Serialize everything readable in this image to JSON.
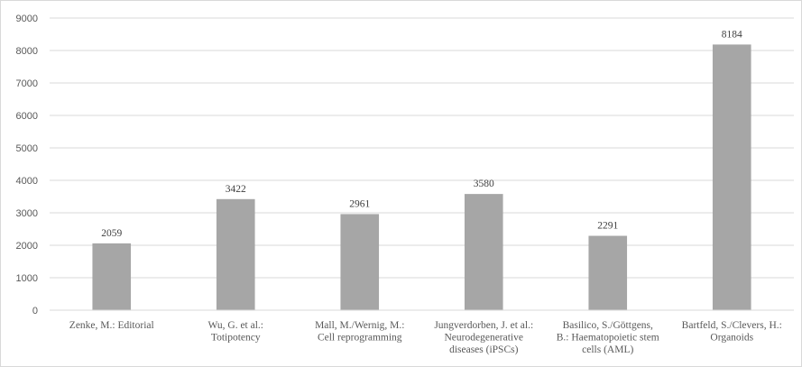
{
  "chart_data": {
    "type": "bar",
    "title": "",
    "xlabel": "",
    "ylabel": "",
    "ylim": [
      0,
      9000
    ],
    "yticks": [
      0,
      1000,
      2000,
      3000,
      4000,
      5000,
      6000,
      7000,
      8000,
      9000
    ],
    "grid": true,
    "legend": "none",
    "bar_color": "#a6a6a6",
    "grid_color": "#d9d9d9",
    "categories": [
      [
        "Zenke, M.: Editorial"
      ],
      [
        "Wu, G. et al.:",
        "Totipotency"
      ],
      [
        "Mall, M./Wernig, M.:",
        "Cell reprogramming"
      ],
      [
        "Jungverdorben, J. et al.:",
        "Neurodegenerative",
        "diseases (iPSCs)"
      ],
      [
        "Basilico, S./Göttgens,",
        "B.: Haematopoietic stem",
        "cells (AML)"
      ],
      [
        "Bartfeld, S./Clevers, H.:",
        "Organoids"
      ]
    ],
    "values": [
      2059,
      3422,
      2961,
      3580,
      2291,
      8184
    ]
  }
}
